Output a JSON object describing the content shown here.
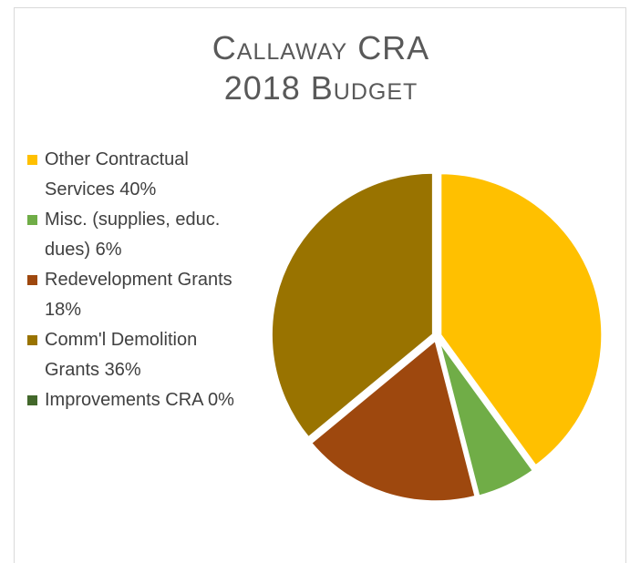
{
  "chart_data": {
    "type": "pie",
    "title": [
      "Callaway CRA",
      "2018 Budget"
    ],
    "categories": [
      "Other Contractual Services 40%",
      "Misc. (supplies, educ. dues) 6%",
      "Redevelopment Grants 18%",
      "Comm'l Demolition Grants 36%",
      "Improvements CRA 0%"
    ],
    "values": [
      40,
      6,
      18,
      36,
      0
    ],
    "colors": [
      "#FFC000",
      "#70AD47",
      "#9E480E",
      "#997300",
      "#43682B"
    ],
    "legend": "left"
  }
}
